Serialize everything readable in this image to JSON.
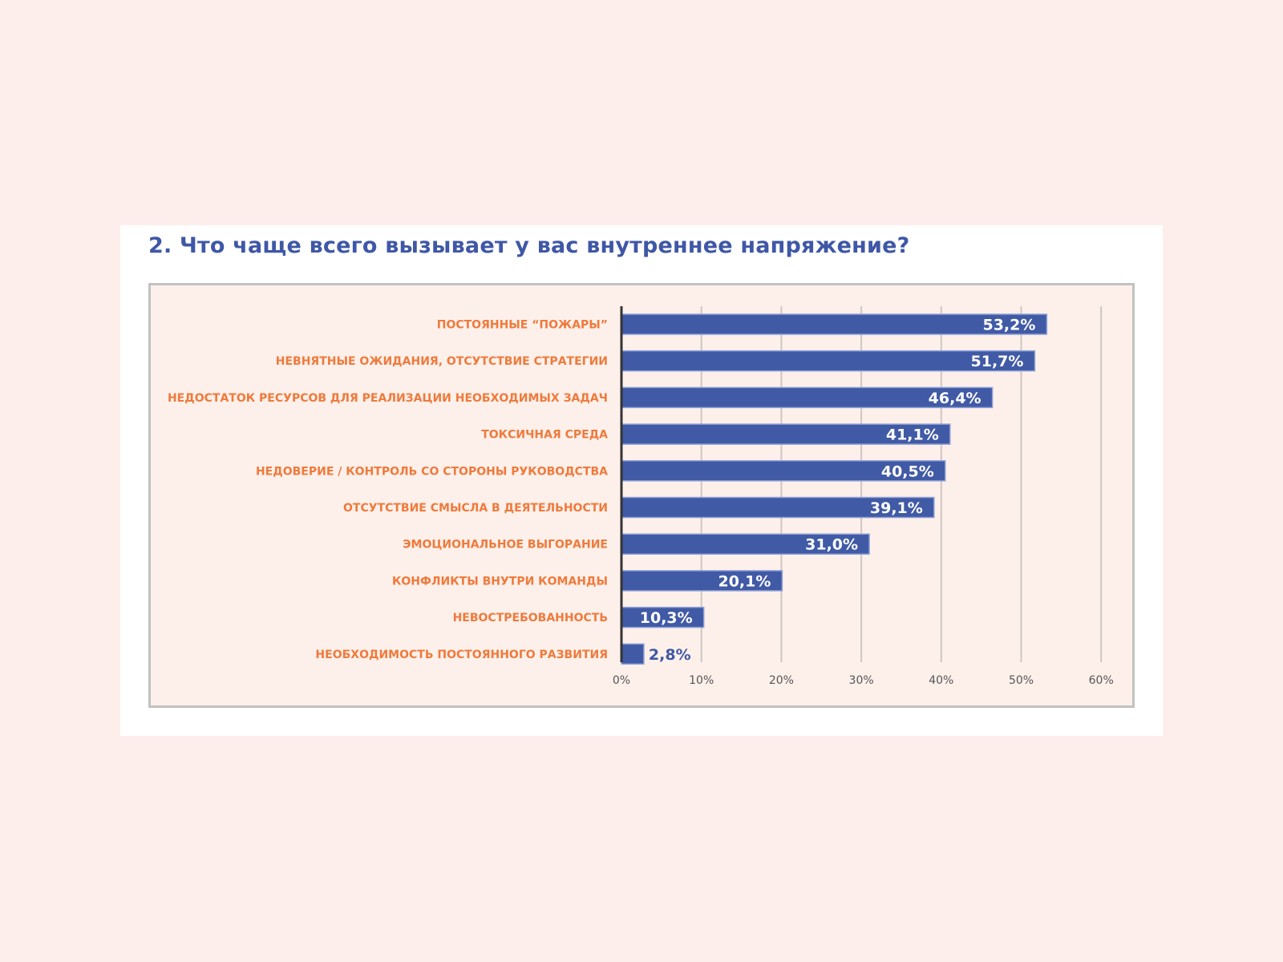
{
  "chart_data": {
    "type": "bar",
    "orientation": "horizontal",
    "title": "2. Что чаще всего вызывает у вас внутреннее напряжение?",
    "xlabel": "",
    "ylabel": "",
    "xlim": [
      0,
      60
    ],
    "grid": true,
    "categories": [
      "ПОСТОЯННЫЕ “ПОЖАРЫ”",
      "НЕВНЯТНЫЕ ОЖИДАНИЯ, ОТСУТСТВИЕ СТРАТЕГИИ",
      "НЕДОСТАТОК РЕСУРСОВ ДЛЯ РЕАЛИЗАЦИИ НЕОБХОДИМЫХ ЗАДАЧ",
      "ТОКСИЧНАЯ СРЕДА",
      "НЕДОВЕРИЕ / КОНТРОЛЬ СО СТОРОНЫ РУКОВОДСТВА",
      "ОТСУТСТВИЕ СМЫСЛА В ДЕЯТЕЛЬНОСТИ",
      "ЭМОЦИОНАЛЬНОЕ ВЫГОРАНИЕ",
      "КОНФЛИКТЫ ВНУТРИ КОМАНДЫ",
      "НЕВОСТРЕБОВАННОСТЬ",
      "НЕОБХОДИМОСТЬ ПОСТОЯННОГО РАЗВИТИЯ"
    ],
    "values": [
      53.2,
      51.7,
      46.4,
      41.1,
      40.5,
      39.1,
      31.0,
      20.1,
      10.3,
      2.8
    ],
    "value_labels": [
      "53,2%",
      "51,7%",
      "46,4%",
      "41,1%",
      "40,5%",
      "39,1%",
      "31,0%",
      "20,1%",
      "10,3%",
      "2,8%"
    ],
    "tick_values": [
      0,
      10,
      20,
      30,
      40,
      50,
      60
    ],
    "tick_labels": [
      "0%",
      "10%",
      "20%",
      "30%",
      "40%",
      "50%",
      "60%"
    ]
  },
  "colors": {
    "bar": "#415aa6",
    "bar_outline": "#8da0d6",
    "category_text": "#ef7a3c",
    "title_text": "#3f57a6",
    "value_text_inside": "#ffffff",
    "value_text_outside": "#3f57a6",
    "gridline": "#cfc6c3",
    "axis": "#333333",
    "plot_background": "#fdf0ea",
    "page_background": "#fdeeec"
  }
}
